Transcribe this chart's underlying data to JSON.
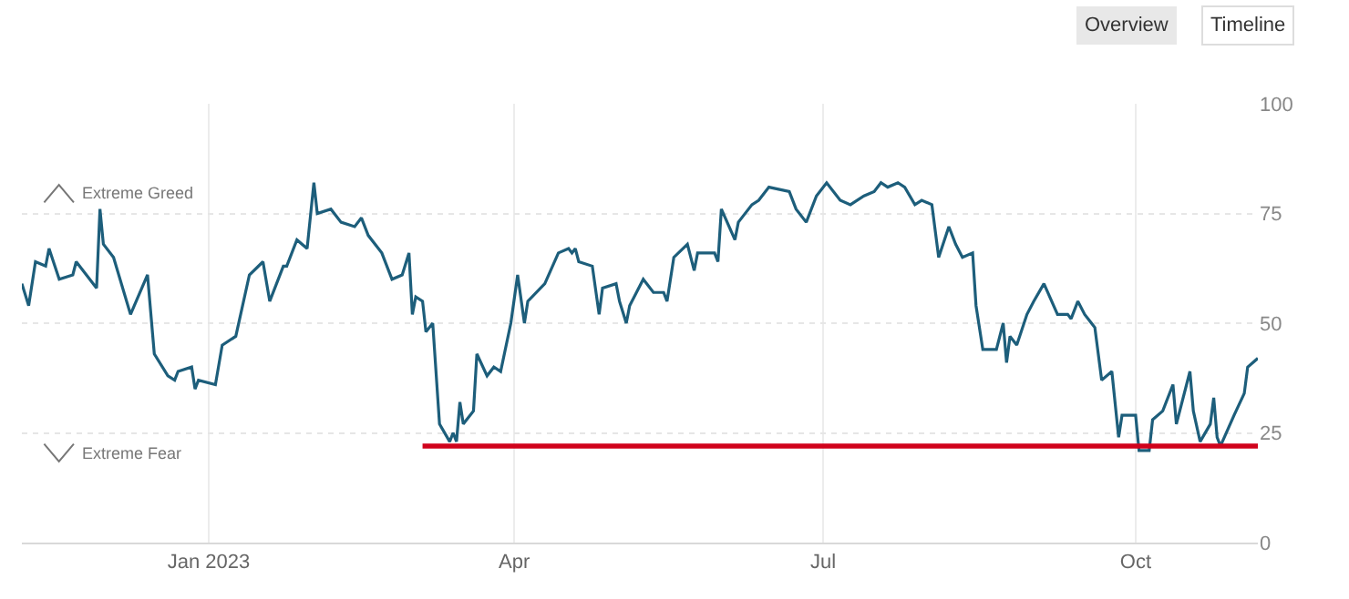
{
  "chart_data": {
    "type": "line",
    "x": [
      "2022-11-07",
      "2022-11-09",
      "2022-11-11",
      "2022-11-14",
      "2022-11-15",
      "2022-11-18",
      "2022-11-22",
      "2022-11-23",
      "2022-11-29",
      "2022-11-30",
      "2022-12-01",
      "2022-12-04",
      "2022-12-09",
      "2022-12-14",
      "2022-12-16",
      "2022-12-20",
      "2022-12-22",
      "2022-12-23",
      "2022-12-27",
      "2022-12-28",
      "2022-12-29",
      "2023-01-03",
      "2023-01-05",
      "2023-01-09",
      "2023-01-13",
      "2023-01-17",
      "2023-01-19",
      "2023-01-23",
      "2023-01-24",
      "2023-01-27",
      "2023-01-30",
      "2023-02-01",
      "2023-02-02",
      "2023-02-06",
      "2023-02-09",
      "2023-02-13",
      "2023-02-15",
      "2023-02-17",
      "2023-02-21",
      "2023-02-24",
      "2023-02-27",
      "2023-03-01",
      "2023-03-02",
      "2023-03-03",
      "2023-03-05",
      "2023-03-06",
      "2023-03-08",
      "2023-03-10",
      "2023-03-13",
      "2023-03-14",
      "2023-03-15",
      "2023-03-16",
      "2023-03-17",
      "2023-03-20",
      "2023-03-21",
      "2023-03-24",
      "2023-03-26",
      "2023-03-28",
      "2023-03-31",
      "2023-04-02",
      "2023-04-04",
      "2023-04-05",
      "2023-04-10",
      "2023-04-14",
      "2023-04-17",
      "2023-04-18",
      "2023-04-19",
      "2023-04-20",
      "2023-04-24",
      "2023-04-26",
      "2023-04-27",
      "2023-05-01",
      "2023-05-02",
      "2023-05-04",
      "2023-05-05",
      "2023-05-09",
      "2023-05-12",
      "2023-05-15",
      "2023-05-16",
      "2023-05-18",
      "2023-05-22",
      "2023-05-24",
      "2023-05-25",
      "2023-05-30",
      "2023-05-31",
      "2023-06-01",
      "2023-06-05",
      "2023-06-06",
      "2023-06-10",
      "2023-06-12",
      "2023-06-15",
      "2023-06-21",
      "2023-06-23",
      "2023-06-26",
      "2023-06-29",
      "2023-07-02",
      "2023-07-06",
      "2023-07-09",
      "2023-07-13",
      "2023-07-16",
      "2023-07-18",
      "2023-07-20",
      "2023-07-23",
      "2023-07-25",
      "2023-07-28",
      "2023-07-30",
      "2023-08-02",
      "2023-08-04",
      "2023-08-07",
      "2023-08-09",
      "2023-08-11",
      "2023-08-14",
      "2023-08-15",
      "2023-08-17",
      "2023-08-21",
      "2023-08-23",
      "2023-08-24",
      "2023-08-25",
      "2023-08-27",
      "2023-08-30",
      "2023-09-01",
      "2023-09-04",
      "2023-09-08",
      "2023-09-11",
      "2023-09-12",
      "2023-09-14",
      "2023-09-16",
      "2023-09-18",
      "2023-09-19",
      "2023-09-21",
      "2023-09-24",
      "2023-09-26",
      "2023-09-27",
      "2023-10-01",
      "2023-10-02",
      "2023-10-03",
      "2023-10-05",
      "2023-10-06",
      "2023-10-09",
      "2023-10-12",
      "2023-10-13",
      "2023-10-17",
      "2023-10-18",
      "2023-10-20",
      "2023-10-23",
      "2023-10-24",
      "2023-10-25",
      "2023-10-26",
      "2023-10-30",
      "2023-11-02",
      "2023-11-03",
      "2023-11-06"
    ],
    "series": [
      {
        "color": "#1d5e7b",
        "values": [
          59,
          54,
          64,
          63,
          67,
          60,
          61,
          64,
          58,
          76,
          68,
          65,
          52,
          61,
          43,
          38,
          37,
          39,
          40,
          35,
          37,
          36,
          45,
          47,
          61,
          64,
          55,
          63,
          63,
          69,
          67,
          82,
          75,
          76,
          73,
          72,
          74,
          70,
          66,
          60,
          61,
          66,
          52,
          56,
          55,
          48,
          50,
          27,
          23,
          25,
          23,
          32,
          27,
          30,
          43,
          38,
          40,
          39,
          50,
          61,
          50,
          55,
          59,
          66,
          67,
          66,
          67,
          64,
          63,
          52,
          58,
          59,
          55,
          50,
          54,
          60,
          57,
          57,
          55,
          65,
          68,
          62,
          66,
          66,
          64,
          76,
          69,
          73,
          77,
          78,
          81,
          80,
          76,
          73,
          79,
          82,
          78,
          77,
          79,
          80,
          82,
          81,
          82,
          81,
          77,
          78,
          77,
          65,
          72,
          68,
          65,
          66,
          54,
          44,
          44,
          50,
          41,
          47,
          45,
          52,
          55,
          59,
          52,
          52,
          51,
          55,
          52,
          50,
          49,
          37,
          39,
          24,
          29,
          29,
          21,
          21,
          21,
          28,
          30,
          36,
          27,
          39,
          30,
          23,
          27,
          33,
          24,
          22,
          29,
          34,
          40,
          42
        ]
      },
      {
        "color": "#d0021b",
        "x": [
          "2023-03-05",
          "2023-11-06"
        ],
        "values": [
          22,
          22
        ]
      }
    ],
    "xlim": [
      "2022-11-07",
      "2023-11-06"
    ],
    "xticks": [
      {
        "value": "2023-01-01",
        "label": "Jan 2023"
      },
      {
        "value": "2023-04-01",
        "label": "Apr"
      },
      {
        "value": "2023-07-01",
        "label": "Jul"
      },
      {
        "value": "2023-10-01",
        "label": "Oct"
      }
    ],
    "ylim": [
      0,
      100
    ],
    "yticks": [
      0,
      25,
      50,
      75,
      100
    ],
    "grid": true,
    "marker": "none",
    "line_style": "solid",
    "annotations": [
      "Extreme Greed",
      "Extreme Fear",
      "Overview",
      "Timeline"
    ]
  }
}
